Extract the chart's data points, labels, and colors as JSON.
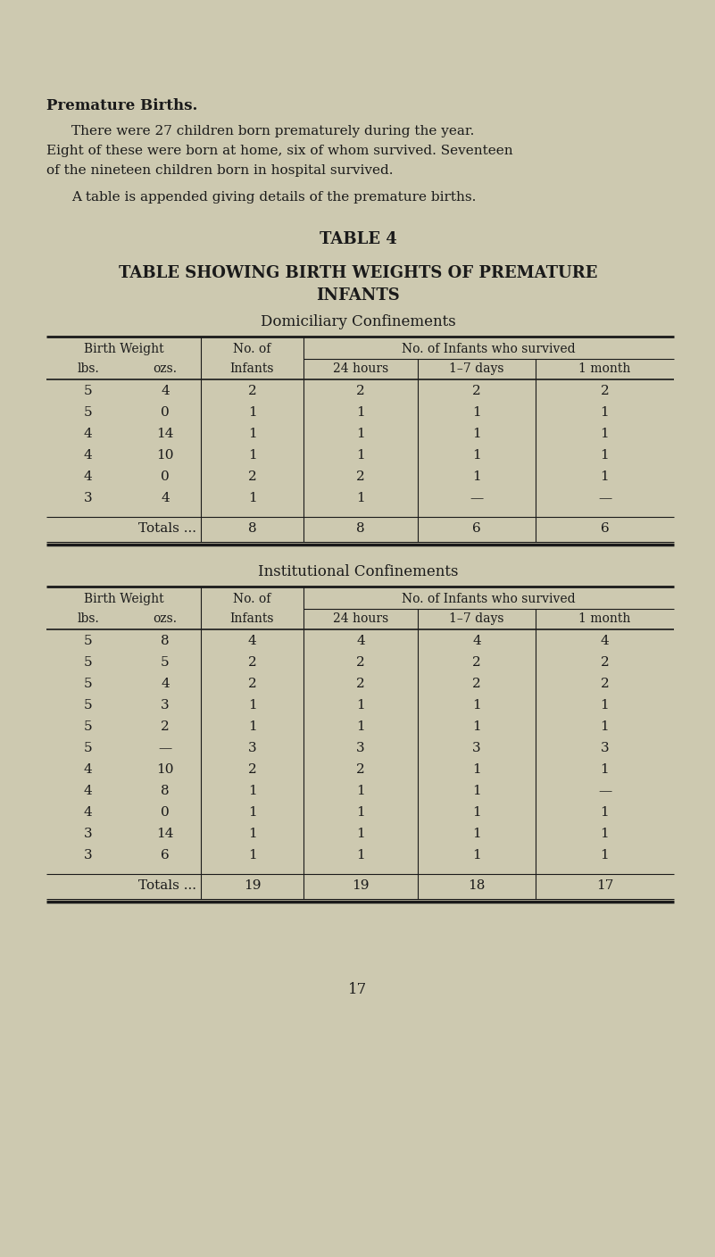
{
  "bg_color": "#cdc9b0",
  "text_color": "#1a1a1a",
  "title_bold": "Premature Births.",
  "para1_line1": "There were 27 children born prematurely during the year.",
  "para1_line2": "Eight of these were born at home, six of whom survived. Seventeen",
  "para1_line3": "of the nineteen children born in hospital survived.",
  "paragraph2": "A table is appended giving details of the premature births.",
  "table_title": "TABLE 4",
  "table_subtitle1": "TABLE SHOWING BIRTH WEIGHTS OF PREMATURE",
  "table_subtitle2": "INFANTS",
  "dom_section_title": "Domiciliary Confinements",
  "inst_section_title": "Institutional Confinements",
  "dom_rows": [
    [
      "5",
      "4",
      "2",
      "2",
      "2",
      "2"
    ],
    [
      "5",
      "0",
      "1",
      "1",
      "1",
      "1"
    ],
    [
      "4",
      "14",
      "1",
      "1",
      "1",
      "1"
    ],
    [
      "4",
      "10",
      "1",
      "1",
      "1",
      "1"
    ],
    [
      "4",
      "0",
      "2",
      "2",
      "1",
      "1"
    ],
    [
      "3",
      "4",
      "1",
      "1",
      "—",
      "—"
    ]
  ],
  "dom_totals": [
    "Totals ...",
    "8",
    "8",
    "6",
    "6"
  ],
  "inst_rows": [
    [
      "5",
      "8",
      "4",
      "4",
      "4",
      "4"
    ],
    [
      "5",
      "5",
      "2",
      "2",
      "2",
      "2"
    ],
    [
      "5",
      "4",
      "2",
      "2",
      "2",
      "2"
    ],
    [
      "5",
      "3",
      "1",
      "1",
      "1",
      "1"
    ],
    [
      "5",
      "2",
      "1",
      "1",
      "1",
      "1"
    ],
    [
      "5",
      "—",
      "3",
      "3",
      "3",
      "3"
    ],
    [
      "4",
      "10",
      "2",
      "2",
      "1",
      "1"
    ],
    [
      "4",
      "8",
      "1",
      "1",
      "1",
      "—"
    ],
    [
      "4",
      "0",
      "1",
      "1",
      "1",
      "1"
    ],
    [
      "3",
      "14",
      "1",
      "1",
      "1",
      "1"
    ],
    [
      "3",
      "6",
      "1",
      "1",
      "1",
      "1"
    ]
  ],
  "inst_totals": [
    "Totals ...",
    "19",
    "19",
    "18",
    "17"
  ],
  "page_number": "17"
}
